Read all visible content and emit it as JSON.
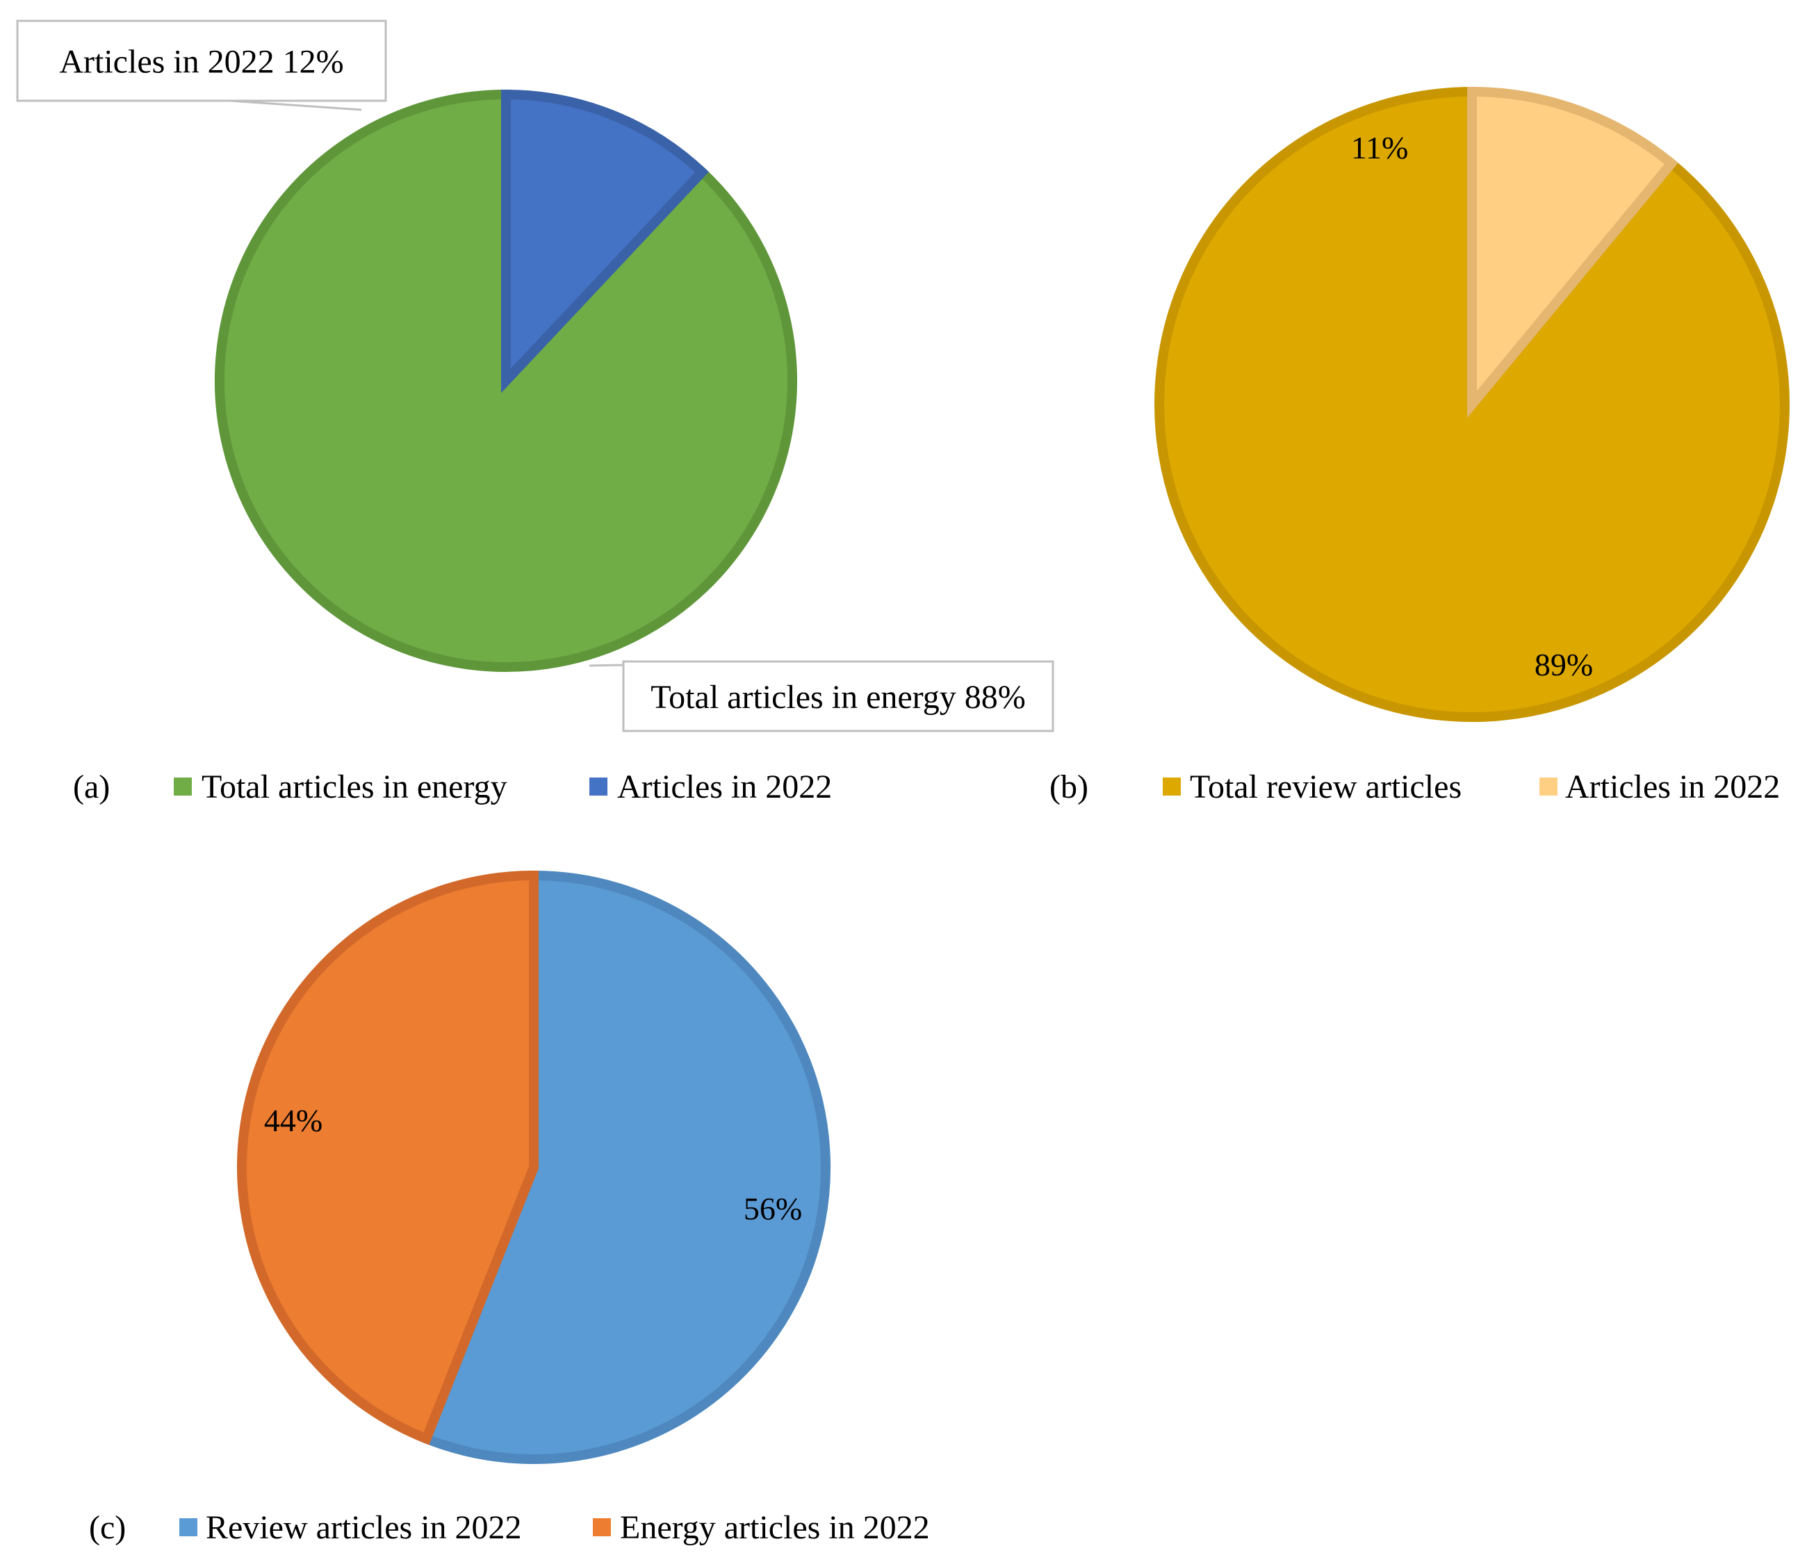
{
  "chart_data": [
    {
      "type": "pie",
      "panel_label": "(a)",
      "slices": [
        {
          "name": "Total articles in energy",
          "value": 88,
          "label": "Total articles in energy 88%",
          "color": "#70AD47",
          "edge": "#5F963A"
        },
        {
          "name": "Articles in 2022",
          "value": 12,
          "label": "Articles in 2022 12%",
          "color": "#4472C4",
          "edge": "#3A62A8"
        }
      ],
      "legend": [
        "Total articles in energy",
        "Articles in 2022"
      ],
      "legend_position": "bottom",
      "data_labels": "callout"
    },
    {
      "type": "pie",
      "panel_label": "(b)",
      "slices": [
        {
          "name": "Total review articles",
          "value": 89,
          "label": "89%",
          "color": "#DDA800",
          "edge": "#C89600"
        },
        {
          "name": "Articles in 2022",
          "value": 11,
          "label": "11%",
          "color": "#FFCF83",
          "edge": "#E4B670"
        }
      ],
      "legend": [
        "Total review articles",
        "Articles in 2022"
      ],
      "legend_position": "bottom",
      "data_labels": "inside"
    },
    {
      "type": "pie",
      "panel_label": "(c)",
      "slices": [
        {
          "name": "Review articles in 2022",
          "value": 56,
          "label": "56%",
          "color": "#5B9BD5",
          "edge": "#4E88BE"
        },
        {
          "name": "Energy articles in 2022",
          "value": 44,
          "label": "44%",
          "color": "#ED7D31",
          "edge": "#D2692A"
        }
      ],
      "legend": [
        "Review articles in 2022",
        "Energy articles in 2022"
      ],
      "legend_position": "bottom",
      "data_labels": "inside"
    }
  ]
}
